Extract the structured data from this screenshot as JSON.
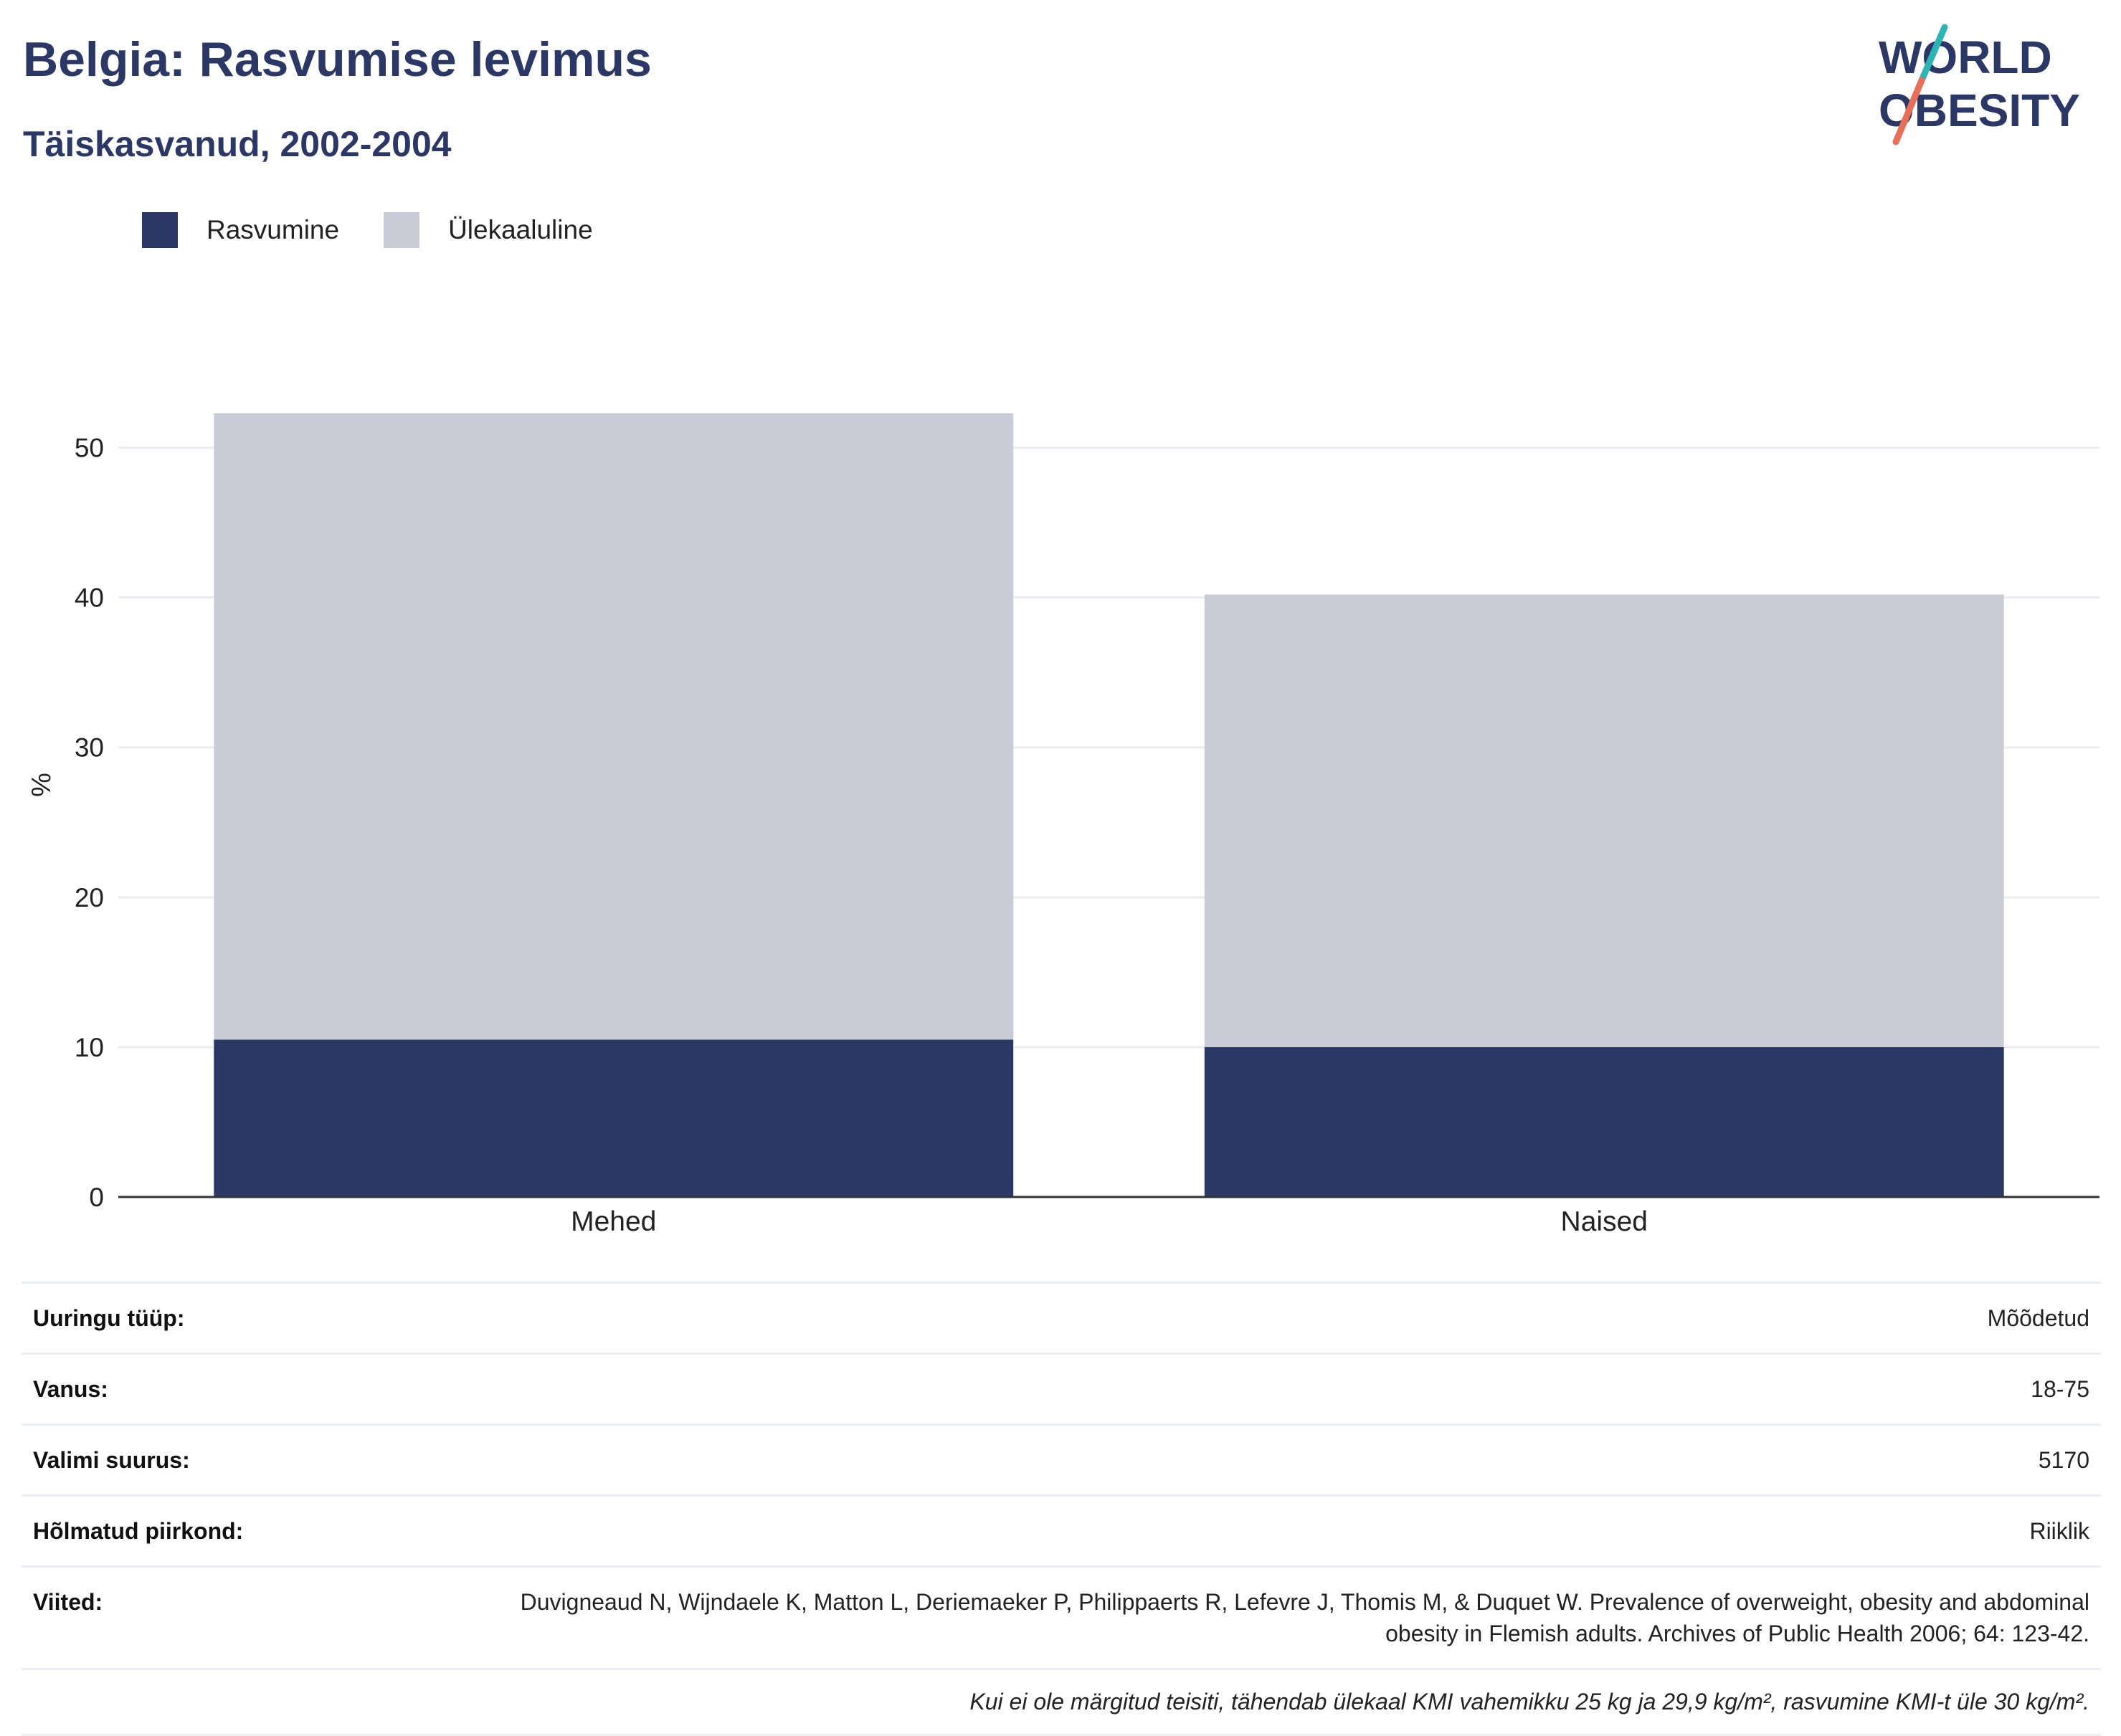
{
  "header": {
    "title": "Belgia: Rasvumise levimus",
    "subtitle": "Täiskasvanud, 2002-2004"
  },
  "logo": {
    "line1": "WORLD",
    "line2": "OBESITY"
  },
  "legend": [
    {
      "label": "Rasvumine",
      "color": "#2b3765"
    },
    {
      "label": "Ülekaaluline",
      "color": "#c9ccd7"
    }
  ],
  "chart_data": {
    "type": "bar",
    "stacked": true,
    "categories": [
      "Mehed",
      "Naised"
    ],
    "series": [
      {
        "name": "Rasvumine",
        "values": [
          10.5,
          10.0
        ],
        "color": "#2b3765"
      },
      {
        "name": "Ülekaaluline",
        "values": [
          41.8,
          30.2
        ],
        "color": "#c9ccd7"
      }
    ],
    "title": "Belgia: Rasvumise levimus",
    "subtitle": "Täiskasvanud, 2002-2004",
    "xlabel": "",
    "ylabel": "%",
    "ylim": [
      0,
      55
    ],
    "yticks": [
      0,
      10,
      20,
      30,
      40,
      50
    ],
    "grid": true,
    "legend_position": "top-left"
  },
  "meta": {
    "rows": [
      {
        "label": "Uuringu tüüp:",
        "value": "Mõõdetud"
      },
      {
        "label": "Vanus:",
        "value": "18-75"
      },
      {
        "label": "Valimi suurus:",
        "value": "5170"
      },
      {
        "label": "Hõlmatud piirkond:",
        "value": "Riiklik"
      },
      {
        "label": "Viited:",
        "value": "Duvigneaud N, Wijndaele K, Matton L, Deriemaeker P, Philippaerts R, Lefevre J, Thomis M, & Duquet W. Prevalence of overweight, obesity and abdominal obesity in Flemish adults. Archives of Public Health 2006; 64: 123-42."
      }
    ],
    "note": "Kui ei ole märgitud teisiti, tähendab ülekaal KMI vahemikku 25 kg ja 29,9 kg/m², rasvumine KMI-t üle 30 kg/m²."
  }
}
